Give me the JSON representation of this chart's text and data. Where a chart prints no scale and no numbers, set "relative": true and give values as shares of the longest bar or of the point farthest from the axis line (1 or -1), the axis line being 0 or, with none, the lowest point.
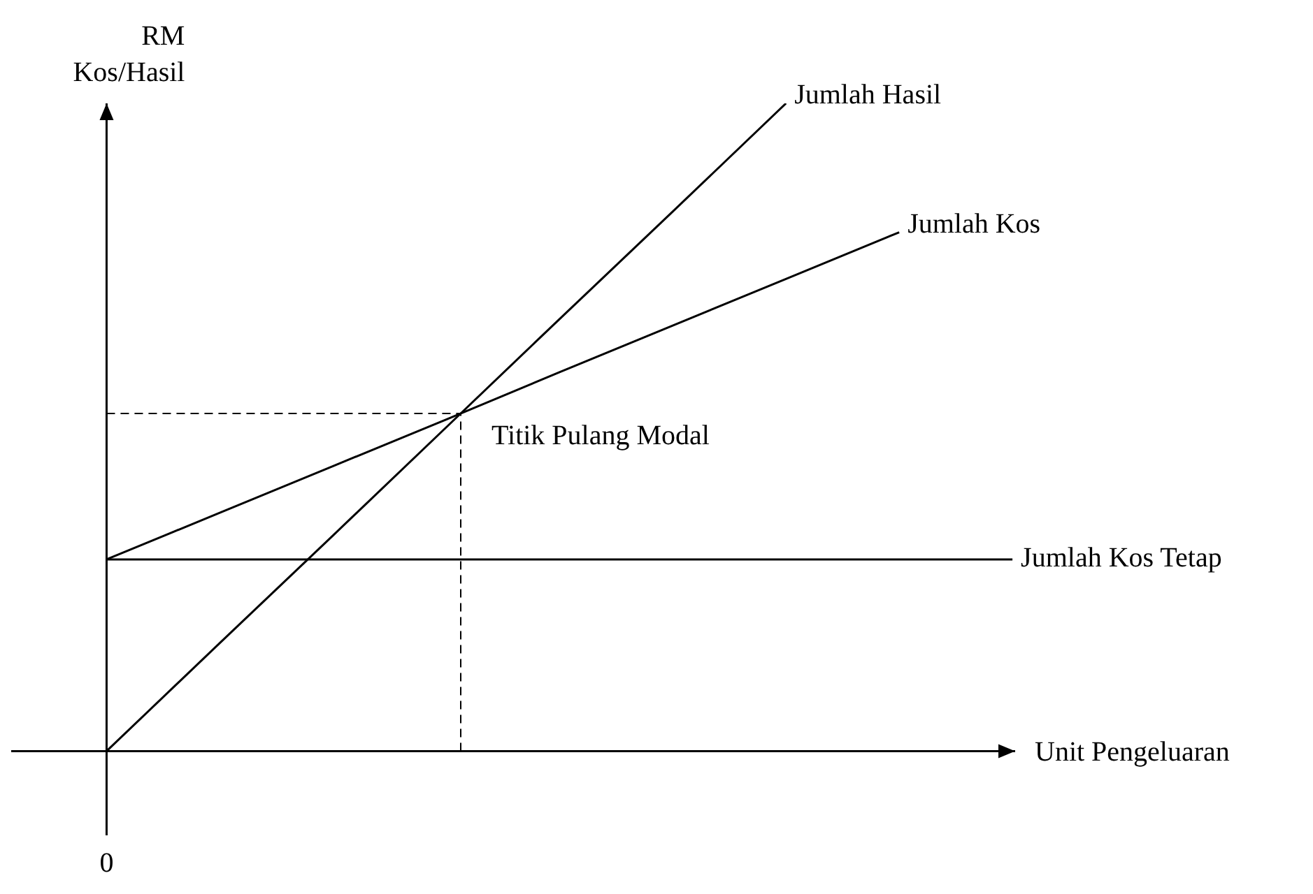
{
  "chart_data": {
    "type": "line",
    "relative": true,
    "xlabel": "Unit Pengeluaran",
    "ylabel": "RM Kos/Hasil",
    "categories": [
      null,
      null,
      null,
      null,
      null,
      null,
      null,
      null,
      null
    ],
    "series": [
      {
        "name": "Jumlah Hasil",
        "color": "#000000",
        "values": [
          0,
          0.167,
          0.333,
          0.5,
          0.667,
          0.833,
          1,
          null,
          null
        ]
      },
      {
        "name": "Jumlah Kos",
        "color": "#000000",
        "values": [
          0.296,
          0.368,
          0.44,
          0.512,
          0.585,
          0.657,
          0.729,
          0.801,
          null
        ]
      },
      {
        "name": "Jumlah Kos Tetap",
        "color": "#000000",
        "values": [
          0.296,
          0.296,
          0.296,
          0.296,
          0.296,
          0.296,
          0.296,
          0.296,
          0.296
        ]
      }
    ],
    "annotations": [
      "Titik Pulang Modal",
      "0"
    ]
  }
}
